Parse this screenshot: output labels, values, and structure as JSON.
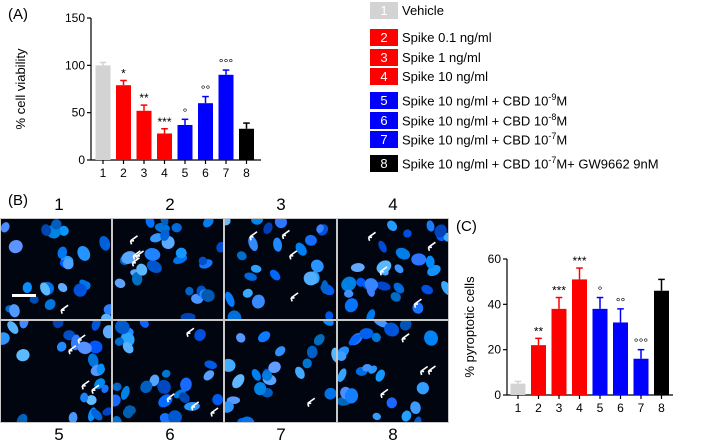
{
  "panels": {
    "a": "(A)",
    "b": "(B)",
    "c": "(C)"
  },
  "chart_data": [
    {
      "id": "A",
      "type": "bar",
      "ylabel": "% cell viability",
      "xlabel": "",
      "ylim": [
        0,
        150
      ],
      "yticks": [
        0,
        50,
        100,
        150
      ],
      "categories": [
        "1",
        "2",
        "3",
        "4",
        "5",
        "6",
        "7",
        "8"
      ],
      "values": [
        100,
        79,
        52,
        28,
        37,
        60,
        90,
        33
      ],
      "errors": [
        3,
        5,
        6,
        5,
        6,
        7,
        5,
        6
      ],
      "colors": [
        "#d3d3d3",
        "#ff0000",
        "#ff0000",
        "#ff0000",
        "#0000ff",
        "#0000ff",
        "#0000ff",
        "#000000"
      ],
      "annotations": [
        "",
        "*",
        "**",
        "***",
        "°",
        "°°",
        "°°°",
        ""
      ]
    },
    {
      "id": "C",
      "type": "bar",
      "ylabel": "% pyroptotic cells",
      "xlabel": "",
      "ylim": [
        0,
        60
      ],
      "yticks": [
        0,
        20,
        40,
        60
      ],
      "categories": [
        "1",
        "2",
        "3",
        "4",
        "5",
        "6",
        "7",
        "8"
      ],
      "values": [
        5,
        22,
        38,
        51,
        38,
        32,
        16,
        46
      ],
      "errors": [
        1,
        3,
        5,
        5,
        5,
        6,
        4,
        5
      ],
      "colors": [
        "#d3d3d3",
        "#ff0000",
        "#ff0000",
        "#ff0000",
        "#0000ff",
        "#0000ff",
        "#0000ff",
        "#000000"
      ],
      "annotations": [
        "",
        "**",
        "***",
        "***",
        "°",
        "°°",
        "°°°",
        ""
      ]
    }
  ],
  "legend": {
    "items": [
      {
        "num": "1",
        "label": "Vehicle",
        "color": "#d3d3d3"
      },
      {
        "num": "2",
        "label": "Spike 0.1 ng/ml",
        "color": "#ff0000"
      },
      {
        "num": "3",
        "label": "Spike 1 ng/ml",
        "color": "#ff0000"
      },
      {
        "num": "4",
        "label": "Spike 10 ng/ml",
        "color": "#ff0000"
      },
      {
        "num": "5",
        "label": "Spike 10 ng/ml + CBD 10",
        "sup": "-9",
        "tail": "M",
        "color": "#0000ff"
      },
      {
        "num": "6",
        "label": "Spike 10 ng/ml + CBD 10",
        "sup": "-8",
        "tail": "M",
        "color": "#0000ff"
      },
      {
        "num": "7",
        "label": "Spike 10 ng/ml + CBD 10",
        "sup": "-7",
        "tail": "M",
        "color": "#0000ff"
      },
      {
        "num": "8",
        "label": "Spike 10 ng/ml + CBD 10",
        "sup": "-7",
        "tail": "M+ GW9662 9nM",
        "color": "#000000"
      }
    ]
  },
  "micrographs": {
    "labels": [
      "1",
      "2",
      "3",
      "4",
      "5",
      "6",
      "7",
      "8"
    ]
  }
}
